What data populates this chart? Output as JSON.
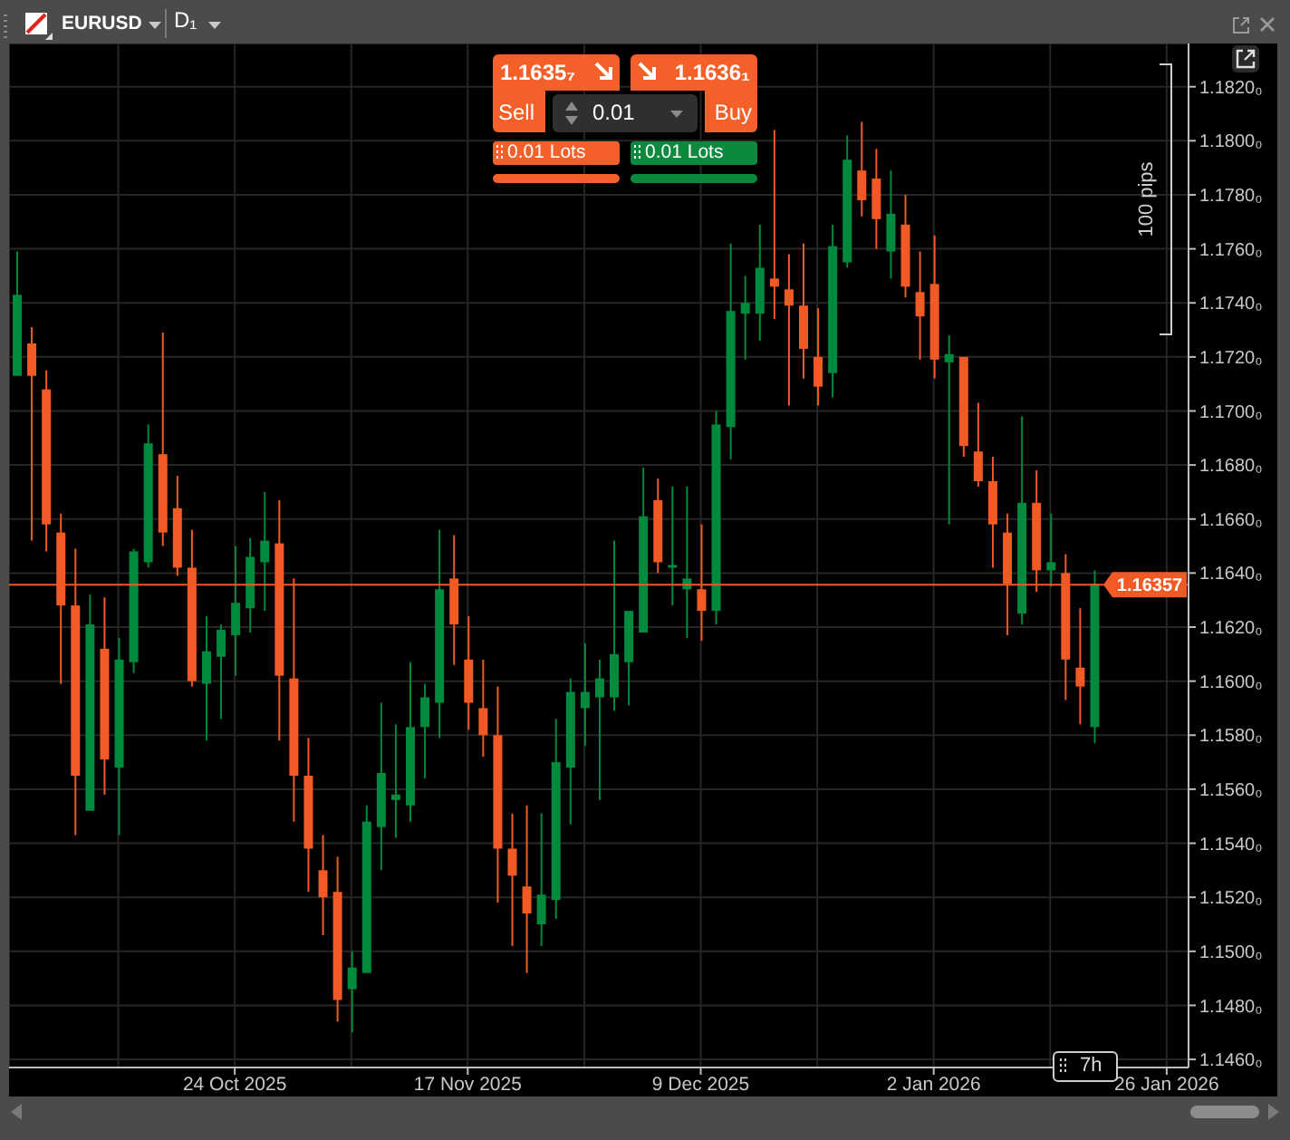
{
  "chart_data": {
    "type": "candlestick",
    "title": "EURUSD",
    "subtitle": "D₁",
    "categories": [
      null,
      null,
      null,
      null,
      null,
      null,
      null,
      null,
      null,
      null,
      null,
      null,
      null,
      null,
      null,
      "24 Oct 2025",
      null,
      null,
      null,
      null,
      null,
      null,
      null,
      null,
      null,
      null,
      null,
      null,
      null,
      null,
      null,
      "17 Nov 2025",
      null,
      null,
      null,
      null,
      null,
      null,
      null,
      null,
      null,
      null,
      null,
      null,
      null,
      null,
      null,
      "9 Dec 2025",
      null,
      null,
      null,
      null,
      null,
      null,
      null,
      null,
      null,
      null,
      null,
      null,
      null,
      null,
      null,
      "2 Jan 2026",
      null,
      null,
      null,
      null,
      null,
      null,
      null,
      null,
      null,
      null,
      null,
      null,
      null,
      null,
      null,
      "26 Jan 2026",
      null
    ],
    "ohlc": [
      [
        1.1713,
        1.1759,
        1.1713,
        1.1743
      ],
      [
        1.1725,
        1.1731,
        1.1652,
        1.1713
      ],
      [
        1.1708,
        1.1715,
        1.1648,
        1.1658
      ],
      [
        1.1655,
        1.1662,
        1.1599,
        1.1628
      ],
      [
        1.1628,
        1.1649,
        1.1543,
        1.1565
      ],
      [
        1.1552,
        1.1632,
        1.1552,
        1.1621
      ],
      [
        1.1612,
        1.1631,
        1.1558,
        1.1571
      ],
      [
        1.1568,
        1.1616,
        1.1543,
        1.1608
      ],
      [
        1.1607,
        1.1649,
        1.1603,
        1.1648
      ],
      [
        1.1644,
        1.1695,
        1.1642,
        1.1688
      ],
      [
        1.1684,
        1.1729,
        1.165,
        1.1655
      ],
      [
        1.1664,
        1.1676,
        1.1639,
        1.1642
      ],
      [
        1.1642,
        1.1656,
        1.1598,
        1.16
      ],
      [
        1.1599,
        1.1624,
        1.1578,
        1.1611
      ],
      [
        1.1609,
        1.1621,
        1.1586,
        1.1619
      ],
      [
        1.1617,
        1.165,
        1.1602,
        1.1629
      ],
      [
        1.1627,
        1.1653,
        1.1618,
        1.1646
      ],
      [
        1.1644,
        1.167,
        1.1626,
        1.1652
      ],
      [
        1.1651,
        1.1667,
        1.1578,
        1.1602
      ],
      [
        1.1601,
        1.1638,
        1.1548,
        1.1565
      ],
      [
        1.1565,
        1.1579,
        1.1522,
        1.1538
      ],
      [
        1.153,
        1.1543,
        1.1506,
        1.152
      ],
      [
        1.1522,
        1.1535,
        1.1474,
        1.1482
      ],
      [
        1.1486,
        1.15,
        1.147,
        1.1494
      ],
      [
        1.1492,
        1.1554,
        1.1492,
        1.1548
      ],
      [
        1.1546,
        1.1592,
        1.153,
        1.1566
      ],
      [
        1.1556,
        1.1584,
        1.1542,
        1.1558
      ],
      [
        1.1554,
        1.1607,
        1.1548,
        1.1583
      ],
      [
        1.1583,
        1.1599,
        1.1564,
        1.1594
      ],
      [
        1.1592,
        1.1656,
        1.1579,
        1.1634
      ],
      [
        1.1638,
        1.1654,
        1.1606,
        1.1621
      ],
      [
        1.1608,
        1.1624,
        1.1582,
        1.1592
      ],
      [
        1.159,
        1.1608,
        1.1572,
        1.158
      ],
      [
        1.158,
        1.1598,
        1.1518,
        1.1538
      ],
      [
        1.1538,
        1.1551,
        1.1502,
        1.1528
      ],
      [
        1.1524,
        1.1554,
        1.1492,
        1.1514
      ],
      [
        1.151,
        1.1551,
        1.1502,
        1.1521
      ],
      [
        1.1519,
        1.1586,
        1.1512,
        1.157
      ],
      [
        1.1568,
        1.1601,
        1.1547,
        1.1596
      ],
      [
        1.159,
        1.1614,
        1.1576,
        1.1596
      ],
      [
        1.1594,
        1.1608,
        1.1556,
        1.1601
      ],
      [
        1.1594,
        1.1652,
        1.1589,
        1.161
      ],
      [
        1.1607,
        1.1626,
        1.1591,
        1.1626
      ],
      [
        1.1618,
        1.1679,
        1.1618,
        1.1661
      ],
      [
        1.1667,
        1.1675,
        1.164,
        1.1644
      ],
      [
        1.1642,
        1.1672,
        1.1628,
        1.1643
      ],
      [
        1.1634,
        1.1672,
        1.1616,
        1.1638
      ],
      [
        1.1634,
        1.1658,
        1.1615,
        1.1626
      ],
      [
        1.1626,
        1.17,
        1.1621,
        1.1695
      ],
      [
        1.1694,
        1.1762,
        1.1682,
        1.1737
      ],
      [
        1.1736,
        1.175,
        1.1719,
        1.174
      ],
      [
        1.1736,
        1.1769,
        1.1726,
        1.1753
      ],
      [
        1.1749,
        1.1804,
        1.1734,
        1.1746
      ],
      [
        1.1745,
        1.1758,
        1.1702,
        1.1739
      ],
      [
        1.1739,
        1.1762,
        1.1712,
        1.1723
      ],
      [
        1.172,
        1.1738,
        1.1702,
        1.1709
      ],
      [
        1.1714,
        1.1769,
        1.1705,
        1.1761
      ],
      [
        1.1755,
        1.1802,
        1.1753,
        1.1793
      ],
      [
        1.1789,
        1.1807,
        1.1772,
        1.1778
      ],
      [
        1.1786,
        1.1797,
        1.176,
        1.1771
      ],
      [
        1.1759,
        1.1789,
        1.1749,
        1.1773
      ],
      [
        1.1769,
        1.178,
        1.1742,
        1.1746
      ],
      [
        1.1744,
        1.1759,
        1.1719,
        1.1735
      ],
      [
        1.1747,
        1.1765,
        1.1712,
        1.1719
      ],
      [
        1.1718,
        1.1728,
        1.1658,
        1.1721
      ],
      [
        1.172,
        1.172,
        1.1683,
        1.1687
      ],
      [
        1.1685,
        1.1703,
        1.1672,
        1.1674
      ],
      [
        1.1674,
        1.1683,
        1.1642,
        1.1658
      ],
      [
        1.1655,
        1.1662,
        1.1617,
        1.1636
      ],
      [
        1.1625,
        1.1698,
        1.1621,
        1.1666
      ],
      [
        1.1666,
        1.1678,
        1.1633,
        1.1641
      ],
      [
        1.1641,
        1.1662,
        1.1635,
        1.1644
      ],
      [
        1.164,
        1.1647,
        1.1593,
        1.1608
      ],
      [
        1.1605,
        1.1627,
        1.1584,
        1.1598
      ],
      [
        1.1583,
        1.1641,
        1.1577,
        1.1636
      ],
      null,
      null,
      null,
      null,
      null,
      null
    ],
    "colors": [
      "#008a3e",
      "#f15a24",
      "#f15a24",
      "#f15a24",
      "#f15a24",
      "#008a3e",
      "#f15a24",
      "#008a3e",
      "#008a3e",
      "#008a3e",
      "#f15a24",
      "#f15a24",
      "#f15a24",
      "#008a3e",
      "#008a3e",
      "#008a3e",
      "#008a3e",
      "#008a3e",
      "#f15a24",
      "#f15a24",
      "#f15a24",
      "#f15a24",
      "#f15a24",
      "#008a3e",
      "#008a3e",
      "#008a3e",
      "#008a3e",
      "#008a3e",
      "#008a3e",
      "#008a3e",
      "#f15a24",
      "#f15a24",
      "#f15a24",
      "#f15a24",
      "#f15a24",
      "#f15a24",
      "#008a3e",
      "#008a3e",
      "#008a3e",
      "#008a3e",
      "#008a3e",
      "#008a3e",
      "#008a3e",
      "#008a3e",
      "#f15a24",
      "#008a3e",
      "#008a3e",
      "#f15a24",
      "#008a3e",
      "#008a3e",
      "#008a3e",
      "#008a3e",
      "#f15a24",
      "#f15a24",
      "#f15a24",
      "#f15a24",
      "#008a3e",
      "#008a3e",
      "#f15a24",
      "#f15a24",
      "#008a3e",
      "#f15a24",
      "#f15a24",
      "#f15a24",
      "#008a3e",
      "#f15a24",
      "#f15a24",
      "#f15a24",
      "#f15a24",
      "#008a3e",
      "#f15a24",
      "#008a3e",
      "#f15a24",
      "#f15a24",
      "#008a3e",
      null,
      null,
      null,
      null,
      null,
      null
    ],
    "ylim": [
      1.1457,
      1.1836
    ],
    "yticks": [
      {
        "value": 1.146,
        "label": "1.1460₀"
      },
      {
        "value": 1.148,
        "label": "1.1480₀"
      },
      {
        "value": 1.15,
        "label": "1.1500₀"
      },
      {
        "value": 1.152,
        "label": "1.1520₀"
      },
      {
        "value": 1.154,
        "label": "1.1540₀"
      },
      {
        "value": 1.156,
        "label": "1.1560₀"
      },
      {
        "value": 1.158,
        "label": "1.1580₀"
      },
      {
        "value": 1.16,
        "label": "1.1600₀"
      },
      {
        "value": 1.162,
        "label": "1.1620₀"
      },
      {
        "value": 1.164,
        "label": "1.1640₀"
      },
      {
        "value": 1.166,
        "label": "1.1660₀"
      },
      {
        "value": 1.168,
        "label": "1.1680₀"
      },
      {
        "value": 1.17,
        "label": "1.1700₀"
      },
      {
        "value": 1.172,
        "label": "1.1720₀"
      },
      {
        "value": 1.174,
        "label": "1.1740₀"
      },
      {
        "value": 1.176,
        "label": "1.1760₀"
      },
      {
        "value": 1.178,
        "label": "1.1780₀"
      },
      {
        "value": 1.18,
        "label": "1.1800₀"
      },
      {
        "value": 1.182,
        "label": "1.1820₀"
      }
    ],
    "grid": true,
    "ref_lines": [
      {
        "axis": "y",
        "value": 1.16357,
        "label": "1.16357",
        "color": "#f15a24"
      }
    ],
    "annotations": [
      "1.1635₇",
      "Sell",
      "1.1636₁",
      "Buy",
      "0.01",
      "0.01 Lots",
      "0.01 Lots",
      "100 pips",
      "7h"
    ]
  }
}
